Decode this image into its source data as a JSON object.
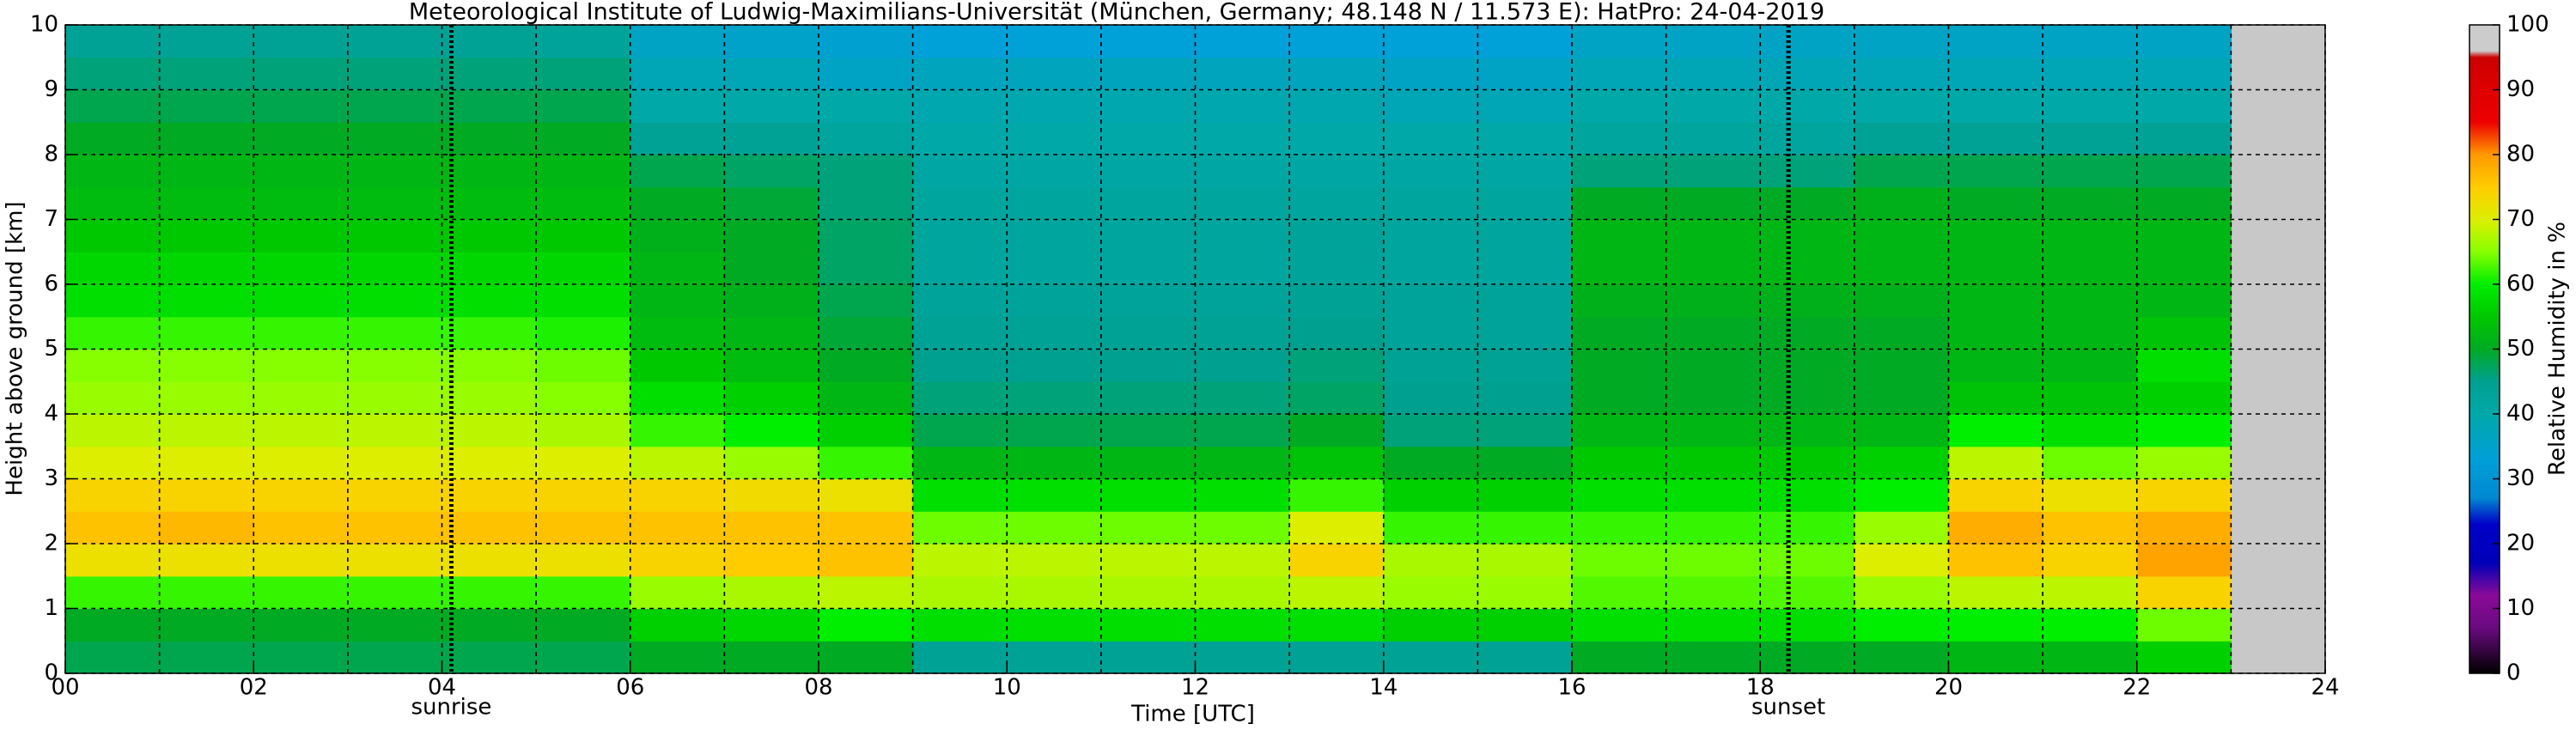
{
  "chart_data": {
    "type": "heatmap",
    "title": "Meteorological Institute of Ludwig-Maximilians-Universität (München, Germany; 48.148 N / 11.573 E):    HatPro: 24-04-2019",
    "xlabel": "Time [UTC]",
    "ylabel": "Height above ground [km]",
    "colorbar_label": "Relative Humidity in %",
    "x": [
      0,
      1,
      2,
      3,
      4,
      5,
      6,
      7,
      8,
      9,
      10,
      11,
      12,
      13,
      14,
      15,
      16,
      17,
      18,
      19,
      20,
      21,
      22
    ],
    "y": [
      0,
      0.5,
      1,
      1.5,
      2,
      2.5,
      3,
      3.5,
      4,
      4.5,
      5,
      5.5,
      6,
      6.5,
      7,
      7.5,
      8,
      8.5,
      9,
      9.5
    ],
    "values": [
      [
        48,
        50,
        62,
        72,
        76,
        74,
        70,
        68,
        66,
        65,
        62,
        58,
        57,
        55,
        53,
        52,
        50,
        48,
        46,
        44
      ],
      [
        48,
        50,
        62,
        72,
        77,
        74,
        70,
        68,
        66,
        65,
        62,
        58,
        57,
        55,
        53,
        52,
        50,
        48,
        46,
        44
      ],
      [
        48,
        50,
        62,
        72,
        76,
        74,
        70,
        68,
        66,
        65,
        62,
        58,
        57,
        55,
        53,
        52,
        50,
        48,
        46,
        44
      ],
      [
        48,
        50,
        62,
        72,
        76,
        74,
        70,
        68,
        66,
        65,
        62,
        58,
        57,
        55,
        53,
        52,
        50,
        48,
        46,
        44
      ],
      [
        48,
        50,
        62,
        72,
        76,
        74,
        70,
        68,
        66,
        65,
        62,
        58,
        57,
        55,
        53,
        52,
        50,
        48,
        46,
        44
      ],
      [
        48,
        50,
        62,
        72,
        76,
        74,
        70,
        67,
        65,
        64,
        61,
        58,
        57,
        55,
        53,
        52,
        50,
        48,
        46,
        43
      ],
      [
        50,
        56,
        66,
        74,
        76,
        74,
        68,
        62,
        58,
        55,
        53,
        52,
        52,
        51,
        50,
        48,
        44,
        40,
        38,
        36
      ],
      [
        50,
        57,
        67,
        75,
        76,
        73,
        66,
        60,
        56,
        53,
        52,
        51,
        50,
        50,
        49,
        47,
        44,
        40,
        38,
        35
      ],
      [
        50,
        60,
        68,
        76,
        76,
        72,
        62,
        56,
        52,
        50,
        49,
        48,
        47,
        47,
        46,
        46,
        42,
        40,
        36,
        34
      ],
      [
        44,
        58,
        67,
        68,
        64,
        58,
        52,
        48,
        46,
        45,
        44,
        43,
        42,
        42,
        42,
        41,
        40,
        39,
        37,
        33
      ],
      [
        44,
        58,
        67,
        68,
        64,
        58,
        52,
        48,
        46,
        45,
        44,
        43,
        42,
        42,
        42,
        41,
        40,
        39,
        37,
        33
      ],
      [
        44,
        58,
        67,
        68,
        64,
        58,
        52,
        48,
        46,
        45,
        44,
        43,
        42,
        42,
        42,
        41,
        40,
        39,
        37,
        33
      ],
      [
        44,
        58,
        67,
        68,
        64,
        58,
        52,
        48,
        46,
        45,
        44,
        43,
        42,
        42,
        42,
        41,
        40,
        39,
        37,
        33
      ],
      [
        44,
        58,
        68,
        74,
        70,
        62,
        54,
        50,
        47,
        46,
        45,
        44,
        43,
        43,
        42,
        41,
        40,
        39,
        37,
        33
      ],
      [
        44,
        56,
        66,
        67,
        62,
        56,
        50,
        46,
        45,
        44,
        43,
        43,
        42,
        42,
        42,
        41,
        40,
        38,
        36,
        33
      ],
      [
        44,
        56,
        66,
        67,
        62,
        56,
        50,
        46,
        45,
        44,
        43,
        43,
        42,
        42,
        42,
        41,
        40,
        38,
        36,
        33
      ],
      [
        50,
        58,
        63,
        64,
        62,
        58,
        55,
        52,
        50,
        50,
        50,
        51,
        52,
        52,
        50,
        46,
        42,
        40,
        38,
        36
      ],
      [
        50,
        58,
        63,
        64,
        62,
        58,
        55,
        52,
        50,
        50,
        50,
        51,
        52,
        52,
        50,
        46,
        42,
        40,
        38,
        36
      ],
      [
        50,
        58,
        63,
        64,
        62,
        58,
        55,
        52,
        50,
        50,
        50,
        51,
        52,
        52,
        50,
        46,
        42,
        40,
        38,
        36
      ],
      [
        50,
        60,
        66,
        70,
        66,
        60,
        56,
        52,
        50,
        50,
        50,
        51,
        52,
        52,
        51,
        48,
        44,
        40,
        38,
        36
      ],
      [
        52,
        60,
        68,
        76,
        78,
        74,
        68,
        60,
        54,
        52,
        52,
        52,
        52,
        52,
        50,
        48,
        44,
        40,
        38,
        36
      ],
      [
        52,
        60,
        68,
        74,
        76,
        72,
        64,
        58,
        54,
        52,
        52,
        52,
        52,
        52,
        50,
        48,
        44,
        40,
        38,
        36
      ],
      [
        56,
        64,
        74,
        79,
        78,
        74,
        66,
        60,
        56,
        58,
        54,
        52,
        52,
        52,
        50,
        48,
        44,
        40,
        38,
        36
      ]
    ],
    "xlim": [
      0,
      24
    ],
    "ylim": [
      0,
      10
    ],
    "xticks": [
      {
        "value": 0,
        "label": "00"
      },
      {
        "value": 2,
        "label": "02"
      },
      {
        "value": 4,
        "label": "04"
      },
      {
        "value": 6,
        "label": "06"
      },
      {
        "value": 8,
        "label": "08"
      },
      10,
      12,
      14,
      16,
      18,
      20,
      22,
      24
    ],
    "xminor": [
      1,
      3,
      5,
      7,
      9,
      11,
      13,
      15,
      17,
      19,
      21,
      23
    ],
    "yticks": [
      0,
      1,
      2,
      3,
      4,
      5,
      6,
      7,
      8,
      9,
      10
    ],
    "grid": true,
    "background": "#c8c8c8",
    "clim": [
      0,
      100
    ],
    "cticks": [
      0,
      10,
      20,
      30,
      40,
      50,
      60,
      70,
      80,
      90,
      100
    ],
    "colorscale": [
      {
        "value": 0,
        "color": "#000000"
      },
      {
        "value": 7,
        "color": "#6a0a80"
      },
      {
        "value": 12,
        "color": "#8a0a98"
      },
      {
        "value": 17,
        "color": "#0000b8"
      },
      {
        "value": 23,
        "color": "#0000c8"
      },
      {
        "value": 27,
        "color": "#0088d0"
      },
      {
        "value": 33,
        "color": "#00a0d8"
      },
      {
        "value": 40,
        "color": "#00a8a8"
      },
      {
        "value": 45,
        "color": "#00a090"
      },
      {
        "value": 50,
        "color": "#00aa22"
      },
      {
        "value": 55,
        "color": "#00c800"
      },
      {
        "value": 60,
        "color": "#00ee00"
      },
      {
        "value": 65,
        "color": "#88ff00"
      },
      {
        "value": 70,
        "color": "#ddee00"
      },
      {
        "value": 75,
        "color": "#ffcc00"
      },
      {
        "value": 80,
        "color": "#ff9900"
      },
      {
        "value": 85,
        "color": "#ee0000"
      },
      {
        "value": 95,
        "color": "#cc0000"
      },
      {
        "value": 96,
        "color": "#cccccc"
      },
      {
        "value": 100,
        "color": "#cccccc"
      }
    ],
    "annotations": [
      {
        "text": "sunrise",
        "x": 4.1
      },
      {
        "text": "sunset",
        "x": 18.3
      }
    ]
  }
}
